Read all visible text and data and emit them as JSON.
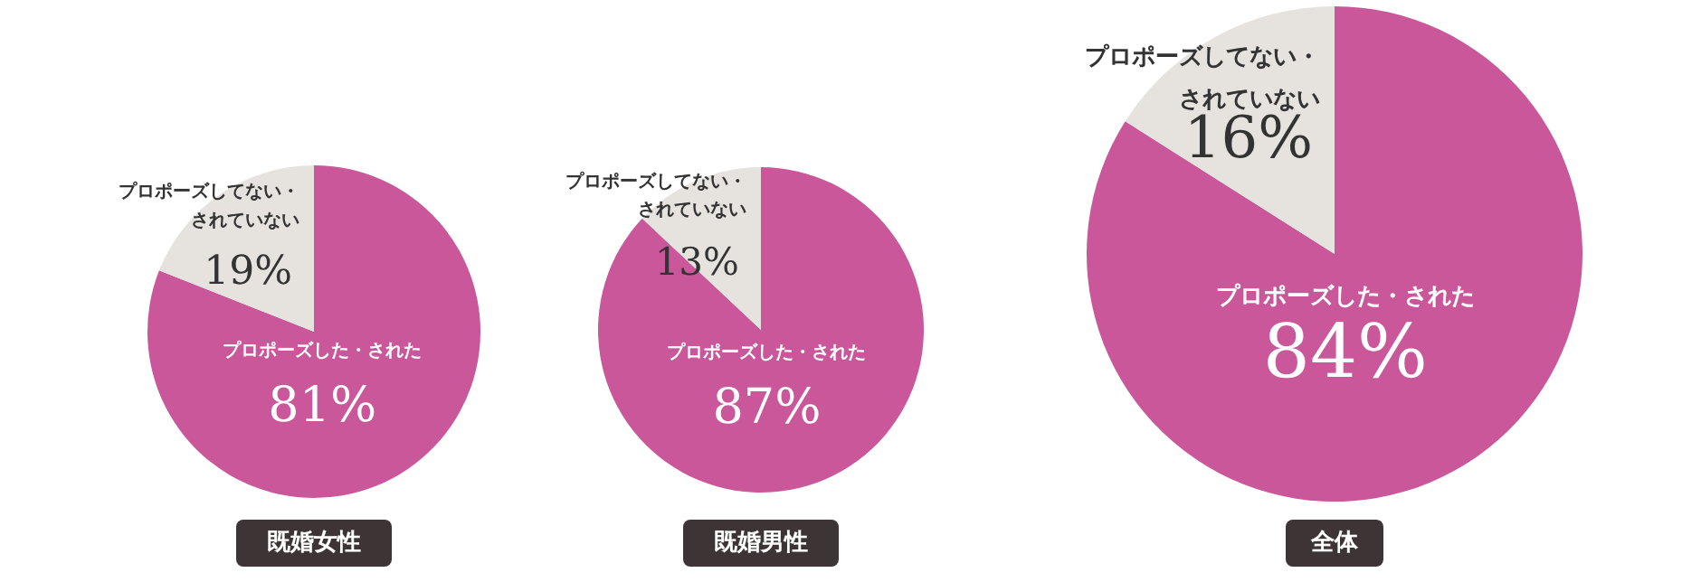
{
  "chart_data": [
    {
      "type": "pie",
      "title": "既婚女性",
      "categories": [
        "プロポーズした・された",
        "プロポーズしてない・されていない"
      ],
      "values": [
        81,
        19
      ],
      "colors": [
        "#c9579a",
        "#e6e2de"
      ],
      "value_labels": [
        "81%",
        "19%"
      ]
    },
    {
      "type": "pie",
      "title": "既婚男性",
      "categories": [
        "プロポーズした・された",
        "プロポーズしてない・されていない"
      ],
      "values": [
        87,
        13
      ],
      "colors": [
        "#c9579a",
        "#e6e2de"
      ],
      "value_labels": [
        "87%",
        "13%"
      ]
    },
    {
      "type": "pie",
      "title": "全体",
      "categories": [
        "プロポーズした・された",
        "プロポーズしてない・されていない"
      ],
      "values": [
        84,
        16
      ],
      "colors": [
        "#c9579a",
        "#e6e2de"
      ],
      "value_labels": [
        "84%",
        "16%"
      ]
    }
  ]
}
